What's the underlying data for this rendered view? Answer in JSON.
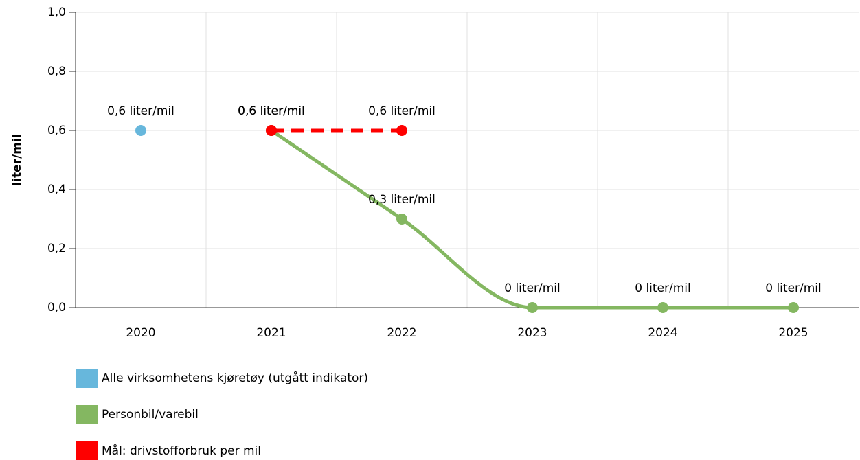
{
  "chart_data": {
    "type": "line",
    "categories": [
      "2020",
      "2021",
      "2022",
      "2023",
      "2024",
      "2025"
    ],
    "y_label": "liter/mil",
    "ylim": [
      0,
      1
    ],
    "yticks": [
      {
        "value": 0,
        "label": "0,0"
      },
      {
        "value": 0.2,
        "label": "0,2"
      },
      {
        "value": 0.4,
        "label": "0,4"
      },
      {
        "value": 0.6,
        "label": "0,6"
      },
      {
        "value": 0.8,
        "label": "0,8"
      },
      {
        "value": 1,
        "label": "1,0"
      }
    ],
    "grid": true,
    "series": [
      {
        "name": "Alle virksomhetens kjøretøy (utgått indikator)",
        "color": "#67b7dc",
        "style": "solid",
        "smooth": false,
        "values": [
          0.6,
          null,
          null,
          null,
          null,
          null
        ],
        "value_labels": [
          "0,6 liter/mil",
          null,
          null,
          null,
          null,
          null
        ]
      },
      {
        "name": "Personbil/varebil",
        "color": "#84b761",
        "style": "solid",
        "smooth": true,
        "values": [
          null,
          0.6,
          0.3,
          0,
          0,
          0
        ],
        "value_labels": [
          null,
          "0,6 liter/mil",
          "0,3 liter/mil",
          "0 liter/mil",
          "0 liter/mil",
          "0 liter/mil"
        ]
      },
      {
        "name": "Mål: drivstofforbruk per mil",
        "color": "#fe0000",
        "style": "dashed",
        "smooth": false,
        "values": [
          null,
          0.6,
          0.6,
          null,
          null,
          null
        ],
        "value_labels": [
          null,
          "0,6 liter/mil",
          "0,6 liter/mil",
          null,
          null,
          null
        ]
      }
    ]
  }
}
